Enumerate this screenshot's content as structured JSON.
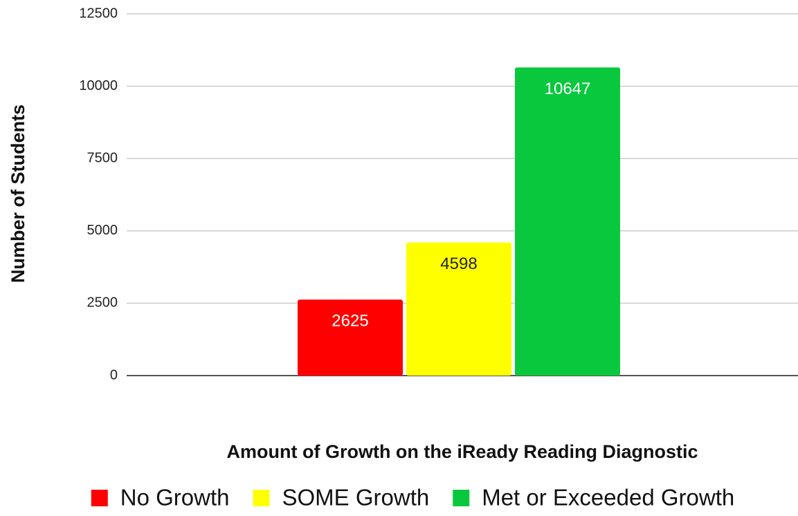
{
  "chart_data": {
    "type": "bar",
    "x_label": "Amount of Growth on the iReady Reading Diagnostic",
    "y_label": "Number of Students",
    "categories": [
      null
    ],
    "series": [
      {
        "name": "No Growth",
        "color": "#ff0000",
        "values": [
          2625
        ]
      },
      {
        "name": "SOME Growth",
        "color": "#ffff00",
        "values": [
          4598
        ]
      },
      {
        "name": "Met or Exceeded Growth",
        "color": "#09c83e",
        "values": [
          10647
        ]
      }
    ],
    "ylim": [
      0,
      12500
    ],
    "yticks": [
      0,
      2500,
      5000,
      7500,
      10000,
      12500
    ],
    "grid": true,
    "legend": "bottom"
  }
}
